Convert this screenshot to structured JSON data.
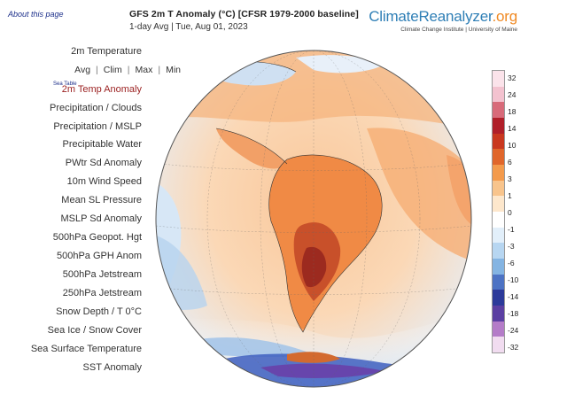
{
  "header": {
    "about_link": "About this page",
    "title": "GFS 2m T Anomaly (°C) [CFSR 1979-2000 baseline]",
    "subtitle": "1-day Avg | Tue, Aug 01, 2023",
    "brand_main": "ClimateReanalyzer",
    "brand_tld": ".org",
    "brand_sub": "Climate Change Institute | University of Maine"
  },
  "menu": {
    "items": [
      {
        "label": "2m Temperature",
        "active": false
      },
      {
        "label": "2m Temp Anomaly",
        "active": true
      },
      {
        "label": "Precipitation / Clouds",
        "active": false
      },
      {
        "label": "Precipitation / MSLP",
        "active": false
      },
      {
        "label": "Precipitable Water",
        "active": false
      },
      {
        "label": "PWtr Sd Anomaly",
        "active": false
      },
      {
        "label": "10m Wind Speed",
        "active": false
      },
      {
        "label": "Mean SL Pressure",
        "active": false
      },
      {
        "label": "MSLP Sd Anomaly",
        "active": false
      },
      {
        "label": "500hPa Geopot. Hgt",
        "active": false
      },
      {
        "label": "500hPa GPH Anom",
        "active": false
      },
      {
        "label": "500hPa Jetstream",
        "active": false
      },
      {
        "label": "250hPa Jetstream",
        "active": false
      },
      {
        "label": "Snow Depth / T 0°C",
        "active": false
      },
      {
        "label": "Sea Ice / Snow Cover",
        "active": false
      },
      {
        "label": "Sea Surface Temperature",
        "active": false
      },
      {
        "label": "SST Anomaly",
        "active": false
      }
    ],
    "stats": [
      "Avg",
      "Clim",
      "Max",
      "Min"
    ],
    "sea_table": "Sea Table"
  },
  "colorbar": {
    "labels": [
      "32",
      "24",
      "18",
      "14",
      "10",
      "6",
      "3",
      "1",
      "0",
      "-1",
      "-3",
      "-6",
      "-10",
      "-14",
      "-18",
      "-24",
      "-32"
    ],
    "colors": [
      "#fbe3ea",
      "#f3c2cf",
      "#d86b7a",
      "#b01f29",
      "#c9381f",
      "#e0662b",
      "#f39a4c",
      "#f8c48c",
      "#fde7cc",
      "#ffffff",
      "#e2effa",
      "#b7d6f1",
      "#84b4e2",
      "#4d73c4",
      "#2c3a9a",
      "#5b3fa2",
      "#b47cc8",
      "#f1dcf0"
    ]
  },
  "colors": {
    "accent_brand": "#2f7fb6",
    "accent_tld": "#f08a24",
    "active_menu": "#9a1f1f",
    "link": "#1c2f8a"
  }
}
